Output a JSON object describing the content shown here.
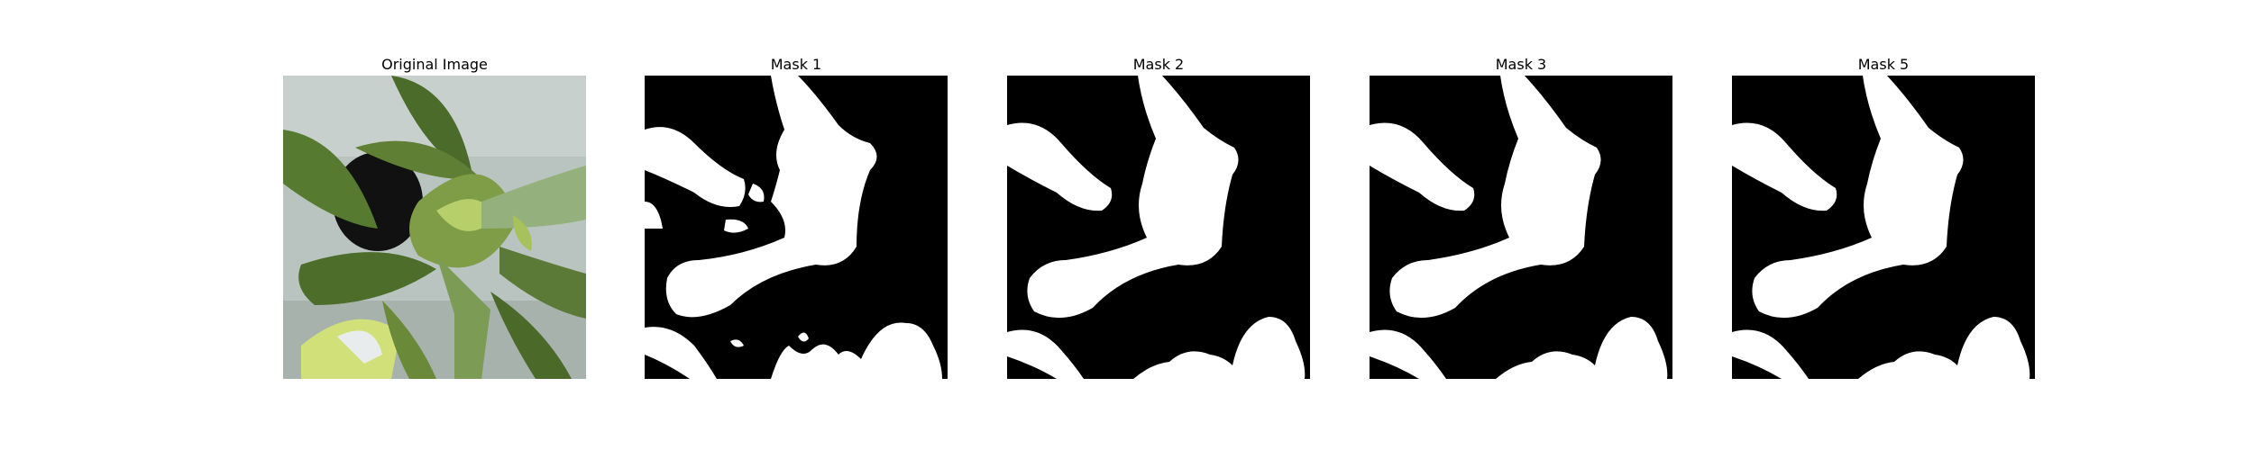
{
  "figure": {
    "panels": [
      {
        "title": "Original Image"
      },
      {
        "title": "Mask 1"
      },
      {
        "title": "Mask 2"
      },
      {
        "title": "Mask 3"
      },
      {
        "title": "Mask 5"
      }
    ]
  },
  "colors": {
    "background": "#ffffff",
    "mask_background": "#000000",
    "mask_foreground": "#ffffff",
    "photo_wall": "#b9c4c0",
    "leaf_dark": "#3f5b24",
    "leaf_mid": "#5f7f34",
    "leaf_light": "#a9c46a",
    "pot_dark": "#111111"
  }
}
